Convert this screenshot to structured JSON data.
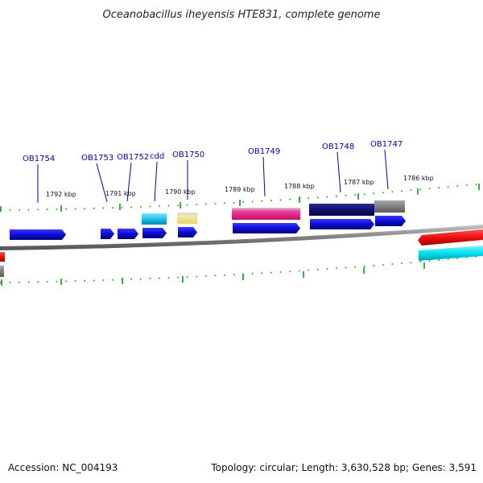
{
  "title": "Oceanobacillus iheyensis HTE831, complete genome",
  "footer": {
    "accession": "Accession: NC_004193",
    "summary": "Topology: circular; Length: 3,630,528 bp; Genes: 3,591"
  },
  "kbp_labels": [
    "1792 kbp",
    "1791 kbp",
    "1790 kbp",
    "1789 kbp",
    "1788 kbp",
    "1787 kbp",
    "1786 kbp"
  ],
  "gene_labels": [
    "OB1754",
    "OB1753",
    "OB1752",
    "cdd",
    "OB1750",
    "OB1749",
    "OB1748",
    "OB1747"
  ],
  "colors": {
    "gene_forward": "#1010dd",
    "rna_cyan": "#22c0e8",
    "misc_yellow": "#f0e08c",
    "misc_pink": "#e8208c",
    "navy": "#101070",
    "gray": "#808080",
    "red": "#ee1010",
    "cyan": "#00e0ee",
    "tick_green": "#119911",
    "backbone": "#888888"
  }
}
